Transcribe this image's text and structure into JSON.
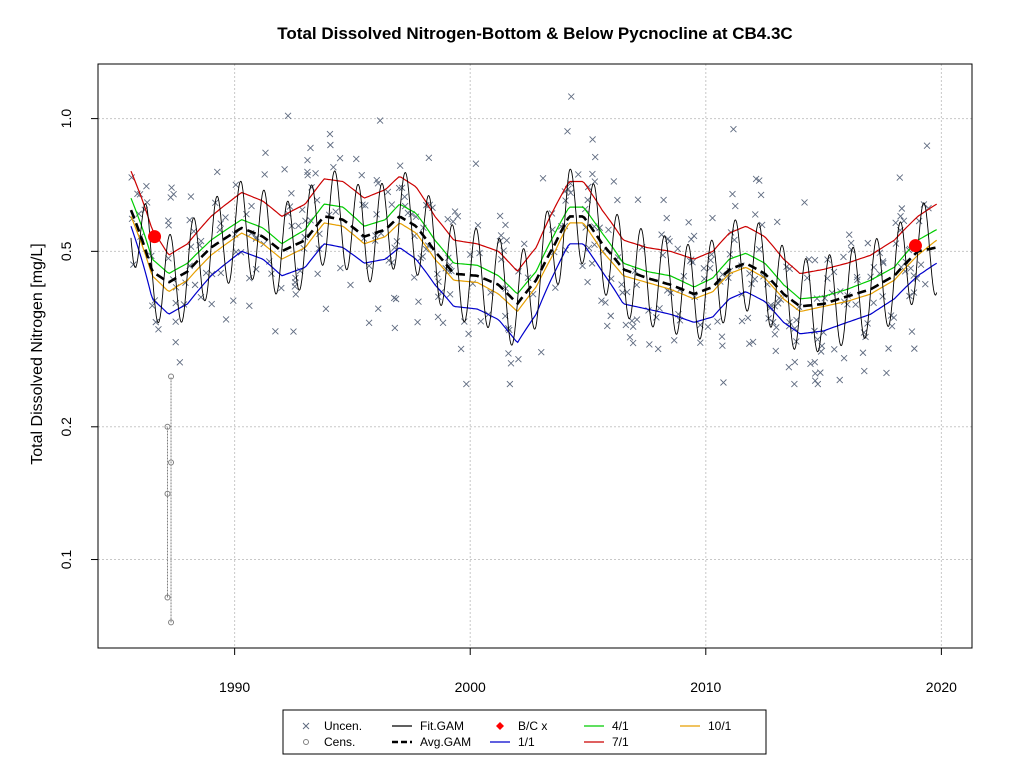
{
  "chart_data": {
    "type": "scatter",
    "title": "Total Dissolved Nitrogen-Bottom & Below Pycnocline at CB4.3C",
    "xlabel": "",
    "ylabel": "Total Dissolved Nitrogen [mg/L]",
    "y_scale": "log",
    "xlim": [
      1984.2,
      2021.3
    ],
    "ylim": [
      0.063,
      1.33
    ],
    "x_ticks": [
      1990,
      2000,
      2010,
      2020
    ],
    "x_tick_labels": [
      "1990",
      "2000",
      "2010",
      "2020"
    ],
    "y_ticks": [
      0.1,
      0.2,
      0.5,
      1.0
    ],
    "y_tick_labels": [
      "0.1",
      "0.2",
      "0.5",
      "1.0"
    ],
    "grid": true,
    "legend_position": "bottom",
    "colors": {
      "uncensored": "#5f6b80",
      "censored": "#808080",
      "fit_gam": "#000000",
      "avg_gam": "#000000",
      "bc_x": "#ff0000",
      "flow_1_1": "#0000cc",
      "flow_4_1": "#00cc00",
      "flow_7_1": "#cc0000",
      "flow_10_1": "#e69f00"
    },
    "legend": [
      {
        "key": "uncen",
        "label": "Uncen.",
        "symbol": "x",
        "color": "#5f6b80"
      },
      {
        "key": "cens",
        "label": "Cens.",
        "symbol": "o",
        "color": "#808080"
      },
      {
        "key": "fitgam",
        "label": "Fit.GAM",
        "symbol": "line",
        "color": "#000000"
      },
      {
        "key": "avggam",
        "label": "Avg.GAM",
        "symbol": "dash",
        "color": "#000000"
      },
      {
        "key": "bcx",
        "label": "B/C x",
        "symbol": "diamond",
        "color": "#ff0000"
      },
      {
        "key": "f11",
        "label": "1/1",
        "symbol": "line",
        "color": "#0000cc"
      },
      {
        "key": "f41",
        "label": "4/1",
        "symbol": "line",
        "color": "#00cc00"
      },
      {
        "key": "f71",
        "label": "7/1",
        "symbol": "line",
        "color": "#cc0000"
      },
      {
        "key": "f101",
        "label": "10/1",
        "symbol": "line",
        "color": "#e69f00"
      }
    ],
    "avg_gam": {
      "x": [
        1985.6,
        1986.5,
        1987.2,
        1988.0,
        1989.0,
        1990.3,
        1991.2,
        1992.0,
        1993.0,
        1993.8,
        1994.6,
        1995.5,
        1996.4,
        1997.0,
        1997.7,
        1998.5,
        1999.3,
        2000.3,
        2001.2,
        2002.0,
        2002.8,
        2003.6,
        2004.2,
        2004.8,
        2005.6,
        2006.5,
        2007.5,
        2008.5,
        2009.5,
        2010.3,
        2011.0,
        2011.7,
        2012.5,
        2013.3,
        2014.0,
        2015.0,
        2016.0,
        2017.0,
        2018.0,
        2019.0,
        2019.8
      ],
      "y": [
        0.62,
        0.45,
        0.425,
        0.45,
        0.51,
        0.565,
        0.54,
        0.5,
        0.53,
        0.6,
        0.59,
        0.54,
        0.56,
        0.6,
        0.57,
        0.5,
        0.445,
        0.44,
        0.42,
        0.38,
        0.43,
        0.52,
        0.6,
        0.6,
        0.52,
        0.455,
        0.435,
        0.42,
        0.4,
        0.415,
        0.455,
        0.47,
        0.445,
        0.4,
        0.375,
        0.38,
        0.395,
        0.41,
        0.44,
        0.5,
        0.51
      ]
    },
    "envelope": {
      "flow_7_1": [
        0.76,
        0.56,
        0.49,
        0.52,
        0.6,
        0.68,
        0.65,
        0.6,
        0.64,
        0.73,
        0.72,
        0.66,
        0.69,
        0.74,
        0.7,
        0.6,
        0.53,
        0.52,
        0.5,
        0.45,
        0.51,
        0.63,
        0.72,
        0.72,
        0.62,
        0.53,
        0.51,
        0.5,
        0.48,
        0.5,
        0.55,
        0.57,
        0.54,
        0.48,
        0.445,
        0.455,
        0.47,
        0.49,
        0.53,
        0.6,
        0.64
      ],
      "flow_4_1": [
        0.66,
        0.48,
        0.445,
        0.47,
        0.53,
        0.59,
        0.565,
        0.52,
        0.56,
        0.64,
        0.63,
        0.57,
        0.59,
        0.64,
        0.61,
        0.53,
        0.47,
        0.465,
        0.44,
        0.4,
        0.45,
        0.55,
        0.63,
        0.63,
        0.55,
        0.47,
        0.45,
        0.44,
        0.415,
        0.435,
        0.48,
        0.495,
        0.47,
        0.42,
        0.39,
        0.395,
        0.41,
        0.43,
        0.46,
        0.53,
        0.56
      ],
      "flow_10_1": [
        0.6,
        0.44,
        0.405,
        0.43,
        0.49,
        0.55,
        0.52,
        0.48,
        0.51,
        0.58,
        0.57,
        0.52,
        0.54,
        0.58,
        0.55,
        0.48,
        0.43,
        0.425,
        0.4,
        0.365,
        0.415,
        0.5,
        0.58,
        0.58,
        0.5,
        0.44,
        0.425,
        0.41,
        0.39,
        0.405,
        0.445,
        0.46,
        0.435,
        0.39,
        0.365,
        0.375,
        0.385,
        0.4,
        0.43,
        0.49,
        0.53
      ],
      "flow_1_1": [
        0.57,
        0.39,
        0.36,
        0.38,
        0.44,
        0.5,
        0.48,
        0.44,
        0.46,
        0.52,
        0.51,
        0.47,
        0.48,
        0.51,
        0.48,
        0.42,
        0.375,
        0.37,
        0.35,
        0.31,
        0.36,
        0.45,
        0.52,
        0.52,
        0.45,
        0.38,
        0.37,
        0.36,
        0.345,
        0.355,
        0.39,
        0.405,
        0.385,
        0.345,
        0.325,
        0.33,
        0.345,
        0.36,
        0.39,
        0.44,
        0.47
      ]
    },
    "fit_gam_amplitude": 1.28,
    "bc_points": [
      {
        "x": 1986.6,
        "y": 0.54
      },
      {
        "x": 2018.9,
        "y": 0.515
      }
    ],
    "censored": [
      {
        "x": 1987.3,
        "y_low": 0.072,
        "y_high": 0.26
      },
      {
        "x": 1987.15,
        "y_low": 0.082,
        "y_high": 0.2
      }
    ],
    "uncensored_seed": 20240521,
    "uncensored_count": 420
  }
}
